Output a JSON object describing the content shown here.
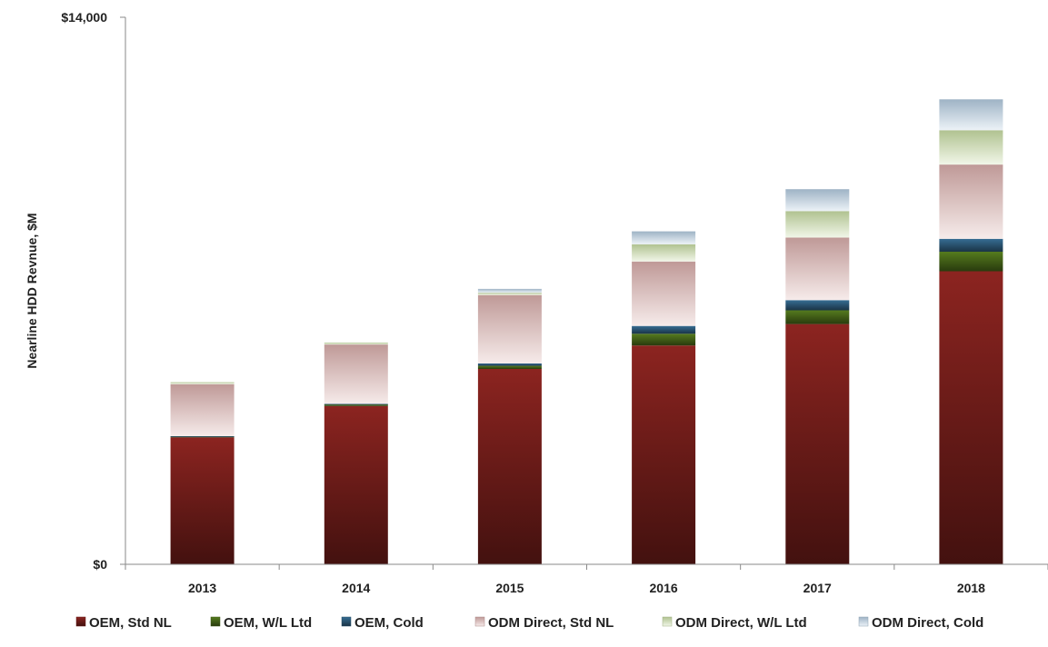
{
  "chart_data": {
    "type": "bar",
    "stacked": true,
    "title": "",
    "xlabel": "",
    "ylabel": "Nearline HDD Revnue, $M",
    "ylim": [
      0,
      14000
    ],
    "y_tick_labels": [
      "$0",
      "$14,000"
    ],
    "grid": false,
    "legend_position": "bottom",
    "categories": [
      "2013",
      "2014",
      "2015",
      "2016",
      "2017",
      "2018"
    ],
    "series": [
      {
        "name": "OEM, Std NL",
        "color": "#7a1f1c",
        "values": [
          3250,
          4050,
          5000,
          5600,
          6150,
          7500
        ]
      },
      {
        "name": "OEM, W/L Ltd",
        "color": "#4a6b1a",
        "values": [
          20,
          40,
          80,
          300,
          350,
          500
        ]
      },
      {
        "name": "OEM, Cold",
        "color": "#2f5f80",
        "values": [
          10,
          15,
          60,
          200,
          260,
          330
        ]
      },
      {
        "name": "ODM Direct, Std NL",
        "color": "#d9aeac",
        "values": [
          1330,
          1520,
          1750,
          1650,
          1600,
          1900
        ]
      },
      {
        "name": "ODM Direct, W/L Ltd",
        "color": "#c8dca4",
        "values": [
          50,
          50,
          60,
          440,
          680,
          880
        ]
      },
      {
        "name": "ODM Direct, Cold",
        "color": "#b3cbe0",
        "values": [
          0,
          0,
          100,
          330,
          560,
          790
        ]
      }
    ]
  }
}
